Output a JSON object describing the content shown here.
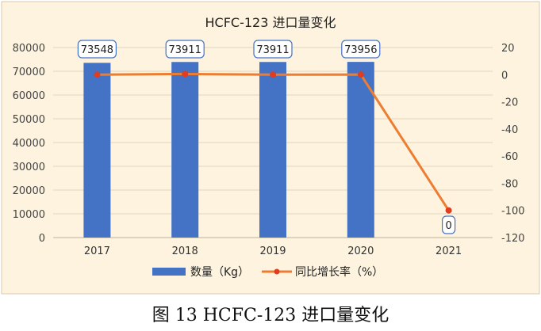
{
  "caption": "图 13   HCFC-123 进口量变化",
  "chart_data": {
    "type": "bar+line",
    "title": "HCFC-123 进口量变化",
    "categories": [
      "2017",
      "2018",
      "2019",
      "2020",
      "2021"
    ],
    "series": [
      {
        "name": "数量（Kg）",
        "type": "bar",
        "axis": "left",
        "values": [
          73548,
          73911,
          73911,
          73956,
          0
        ],
        "labels": [
          "73548",
          "73911",
          "73911",
          "73956",
          "0"
        ]
      },
      {
        "name": "同比增长率（%）",
        "type": "line",
        "axis": "right",
        "values": [
          0,
          0.5,
          0,
          0.06,
          -100
        ]
      }
    ],
    "ylim_left": [
      0,
      80000
    ],
    "yticks_left": [
      "80000",
      "70000",
      "60000",
      "50000",
      "40000",
      "30000",
      "20000",
      "10000",
      "0"
    ],
    "ylim_right": [
      -120,
      20
    ],
    "yticks_right": [
      "20",
      "0",
      "-20",
      "-40",
      "-60",
      "-80",
      "-100",
      "-120"
    ],
    "grid": true,
    "legend_position": "bottom",
    "colors": {
      "bar": "#4472C4",
      "line": "#ED7D31",
      "marker": "#E03C1F",
      "background": "#FDF3DF"
    }
  }
}
